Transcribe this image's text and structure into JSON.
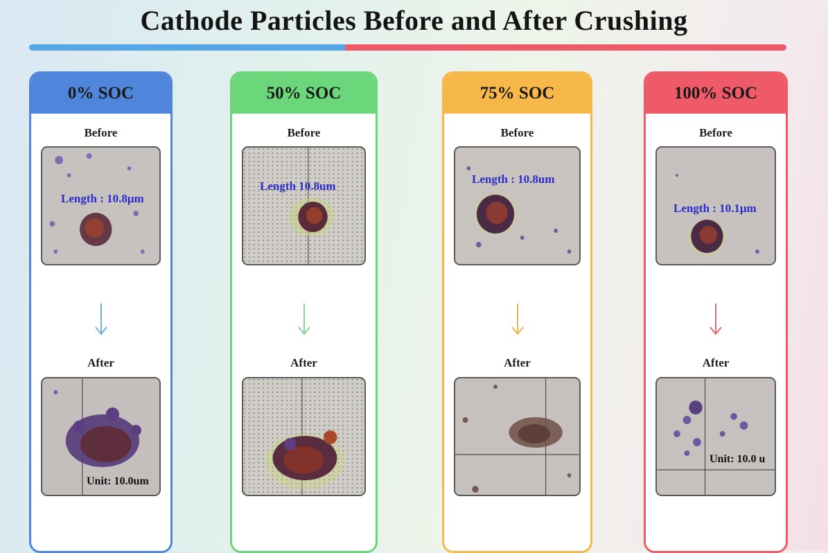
{
  "title": "Cathode Particles Before and After Crushing",
  "colors": {
    "blue": "#4f86dc",
    "green": "#6cd67a",
    "orange": "#f7b84a",
    "red": "#ee5a67"
  },
  "panels": [
    {
      "soc": "0% SOC",
      "before_label": "Before",
      "after_label": "After",
      "caption": "Length : 10.8μm",
      "unit_text": "Unit: 10.0um",
      "arrow_color": "#6fb0e0"
    },
    {
      "soc": "50% SOC",
      "before_label": "Before",
      "after_label": "After",
      "caption": "Length   10.8um",
      "unit_text": "",
      "arrow_color": "#8ed19a"
    },
    {
      "soc": "75% SOC",
      "before_label": "Before",
      "after_label": "After",
      "caption": "Length : 10.8um",
      "unit_text": "",
      "arrow_color": "#f0b34a"
    },
    {
      "soc": "100% SOC",
      "before_label": "Before",
      "after_label": "After",
      "caption": "Length : 10.1μm",
      "unit_text": "Unit: 10.0 u",
      "arrow_color": "#e86a72"
    }
  ]
}
